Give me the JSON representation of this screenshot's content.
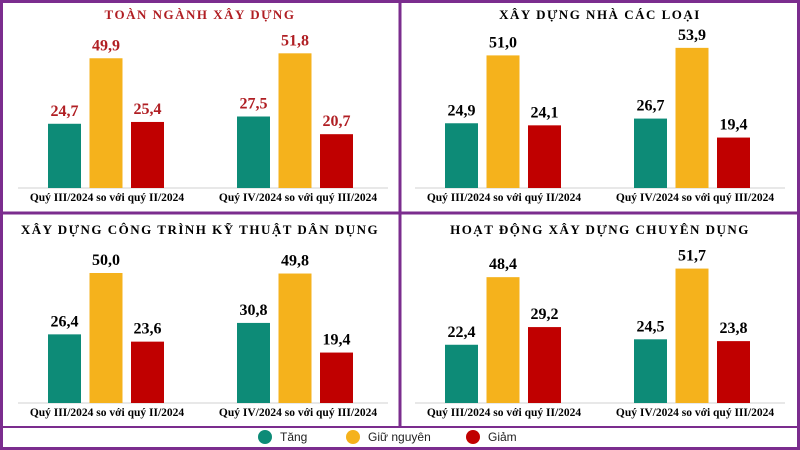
{
  "colors": {
    "frame": "#7b2d8e",
    "increase": "#0d8b77",
    "unchanged": "#f5b21c",
    "decrease": "#c00000",
    "title_red": "#b01e23"
  },
  "legend": {
    "items": [
      {
        "label": "Tăng",
        "color": "#0d8b77"
      },
      {
        "label": "Giữ nguyên",
        "color": "#f5b21c"
      },
      {
        "label": "Giảm",
        "color": "#c00000"
      }
    ]
  },
  "chart_data": [
    {
      "type": "bar",
      "title": "TOÀN NGÀNH XÂY DỰNG",
      "categories": [
        "Quý III/2024 so với quý II/2024",
        "Quý IV/2024 so với quý III/2024"
      ],
      "series": [
        {
          "name": "Tăng",
          "values": [
            24.7,
            27.5
          ],
          "labels": [
            "24,7",
            "27,5"
          ]
        },
        {
          "name": "Giữ nguyên",
          "values": [
            49.9,
            51.8
          ],
          "labels": [
            "49,9",
            "51,8"
          ]
        },
        {
          "name": "Giảm",
          "values": [
            25.4,
            20.7
          ],
          "labels": [
            "25,4",
            "20,7"
          ]
        }
      ],
      "ylim": [
        0,
        60
      ]
    },
    {
      "type": "bar",
      "title": "XÂY DỰNG NHÀ CÁC LOẠI",
      "categories": [
        "Quý III/2024 so với quý II/2024",
        "Quý IV/2024 so với quý III/2024"
      ],
      "series": [
        {
          "name": "Tăng",
          "values": [
            24.9,
            26.7
          ],
          "labels": [
            "24,9",
            "26,7"
          ]
        },
        {
          "name": "Giữ nguyên",
          "values": [
            51.0,
            53.9
          ],
          "labels": [
            "51,0",
            "53,9"
          ]
        },
        {
          "name": "Giảm",
          "values": [
            24.1,
            19.4
          ],
          "labels": [
            "24,1",
            "19,4"
          ]
        }
      ],
      "ylim": [
        0,
        60
      ]
    },
    {
      "type": "bar",
      "title": "XÂY DỰNG CÔNG TRÌNH KỸ THUẬT DÂN DỤNG",
      "categories": [
        "Quý III/2024 so với quý II/2024",
        "Quý IV/2024 so với quý III/2024"
      ],
      "series": [
        {
          "name": "Tăng",
          "values": [
            26.4,
            30.8
          ],
          "labels": [
            "26,4",
            "30,8"
          ]
        },
        {
          "name": "Giữ nguyên",
          "values": [
            50.0,
            49.8
          ],
          "labels": [
            "50,0",
            "49,8"
          ]
        },
        {
          "name": "Giảm",
          "values": [
            23.6,
            19.4
          ],
          "labels": [
            "23,6",
            "19,4"
          ]
        }
      ],
      "ylim": [
        0,
        60
      ]
    },
    {
      "type": "bar",
      "title": "HOẠT ĐỘNG XÂY DỰNG CHUYÊN DỤNG",
      "categories": [
        "Quý III/2024 so với quý II/2024",
        "Quý IV/2024 so với quý III/2024"
      ],
      "series": [
        {
          "name": "Tăng",
          "values": [
            22.4,
            24.5
          ],
          "labels": [
            "22,4",
            "24,5"
          ]
        },
        {
          "name": "Giữ nguyên",
          "values": [
            48.4,
            51.7
          ],
          "labels": [
            "48,4",
            "51,7"
          ]
        },
        {
          "name": "Giảm",
          "values": [
            29.2,
            23.8
          ],
          "labels": [
            "29,2",
            "23,8"
          ]
        }
      ],
      "ylim": [
        0,
        60
      ]
    }
  ]
}
